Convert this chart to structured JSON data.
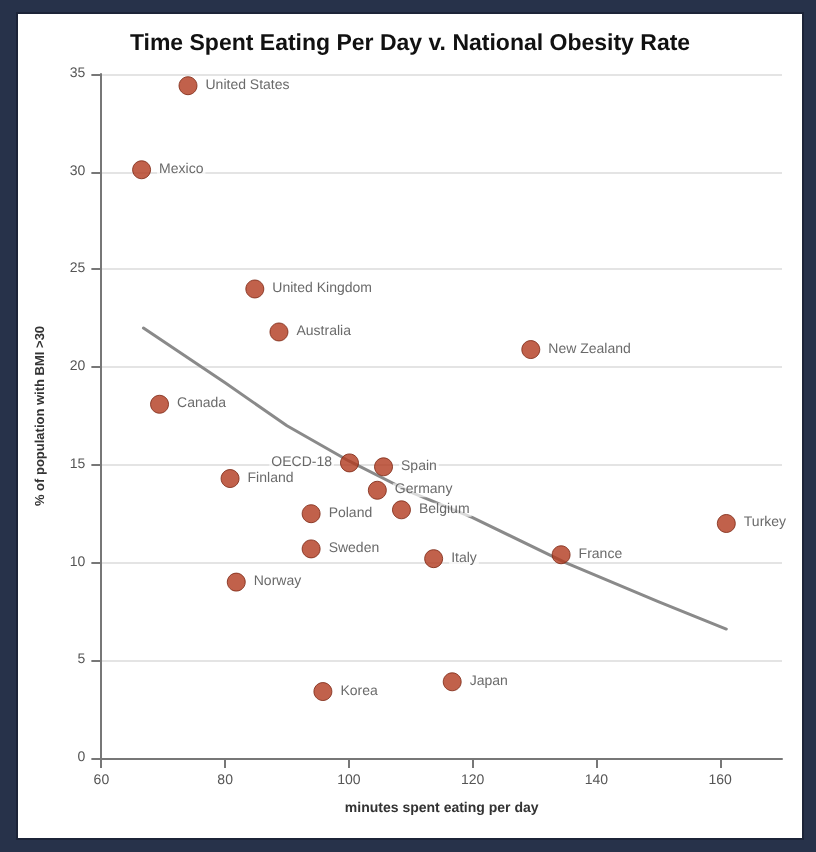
{
  "chart_data": {
    "type": "scatter",
    "title": "Time Spent Eating Per Day v. National Obesity Rate",
    "xlabel": "minutes spent eating per day",
    "ylabel": "% of population with BMI >30",
    "xlim": [
      60,
      170
    ],
    "xticks": [
      60,
      80,
      100,
      120,
      140,
      160
    ],
    "ylim": [
      0,
      35
    ],
    "yticks": [
      0,
      5,
      10,
      15,
      20,
      25,
      30,
      35
    ],
    "grid": "y",
    "series": [
      {
        "marker": "circle",
        "color": "#b23a1e",
        "x": [
          74.0,
          66.5,
          84.8,
          88.7,
          69.4,
          80.8,
          81.8,
          93.9,
          93.9,
          95.8,
          100.1,
          105.6,
          104.6,
          108.5,
          113.7,
          116.7,
          134.3,
          129.4,
          161.0
        ],
        "values": [
          34.4,
          30.1,
          24.0,
          21.8,
          18.1,
          14.3,
          9.0,
          12.5,
          10.7,
          3.4,
          15.1,
          14.9,
          13.7,
          12.7,
          10.2,
          3.9,
          10.4,
          20.9,
          12.0
        ],
        "value_labels": [
          "United States",
          "Mexico",
          "United Kingdom",
          "Australia",
          "Canada",
          "Finland",
          "Norway",
          "Poland",
          "Sweden",
          "Korea",
          "OECD-18",
          "Spain",
          "Germany",
          "Belgium",
          "Italy",
          "Japan",
          "France",
          "New Zealand",
          "Turkey"
        ]
      },
      {
        "type": "line",
        "marker": "none",
        "line_style": "solid",
        "color": "#8a8a8a",
        "x": [
          66.8,
          80,
          90,
          100,
          110,
          120,
          135,
          150,
          161
        ],
        "values": [
          22.0,
          19.2,
          17.0,
          15.2,
          13.6,
          12.3,
          10.0,
          8.0,
          6.6
        ]
      }
    ]
  }
}
